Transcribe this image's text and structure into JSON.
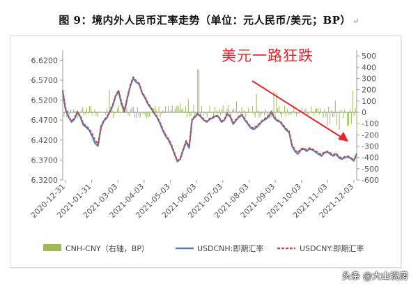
{
  "document": {
    "title": "图 9：境内外人民币汇率走势（单位：元人民币/美元；BP）",
    "return_mark": "↵"
  },
  "annotation": {
    "text": "美元一路狂跌",
    "color": "#e8242c"
  },
  "watermark": "头条 @大山说房",
  "chart_data": {
    "type": "line",
    "title": "",
    "x_tick_labels": [
      "2020-12-31",
      "2021-01-31",
      "2021-03-03",
      "2021-04-03",
      "2021-05-03",
      "2021-06-03",
      "2021-07-03",
      "2021-08-03",
      "2021-09-03",
      "2021-10-03",
      "2021-11-03",
      "2021-12-03"
    ],
    "y_left": {
      "min": 6.32,
      "max": 6.645,
      "ticks": [
        "6.3200",
        "6.3700",
        "6.4200",
        "6.4700",
        "6.5200",
        "6.5700",
        "6.6200"
      ]
    },
    "y_right": {
      "min": -600,
      "max": 550,
      "ticks": [
        "500",
        "400",
        "300",
        "200",
        "100",
        "0",
        "-100",
        "-200",
        "-300",
        "-400",
        "-500",
        "-600"
      ]
    },
    "grid": false,
    "legend_position": "bottom",
    "series": [
      {
        "name": "CNH-CNY（右轴，BP）",
        "kind": "bar",
        "axis": "right",
        "color": "#9bbb59"
      },
      {
        "name": "USDCNH:即期汇率",
        "kind": "line",
        "axis": "left",
        "color": "#4f81bd",
        "x": [
          0,
          0.01,
          0.02,
          0.03,
          0.04,
          0.05,
          0.06,
          0.07,
          0.08,
          0.09,
          0.1,
          0.11,
          0.12,
          0.13,
          0.14,
          0.15,
          0.16,
          0.17,
          0.18,
          0.19,
          0.2,
          0.21,
          0.22,
          0.23,
          0.24,
          0.25,
          0.26,
          0.27,
          0.28,
          0.29,
          0.3,
          0.31,
          0.32,
          0.33,
          0.34,
          0.35,
          0.36,
          0.37,
          0.38,
          0.39,
          0.4,
          0.41,
          0.42,
          0.43,
          0.44,
          0.45,
          0.46,
          0.47,
          0.48,
          0.49,
          0.5,
          0.51,
          0.52,
          0.53,
          0.54,
          0.55,
          0.56,
          0.57,
          0.58,
          0.59,
          0.6,
          0.61,
          0.62,
          0.63,
          0.64,
          0.65,
          0.66,
          0.67,
          0.68,
          0.69,
          0.7,
          0.71,
          0.72,
          0.73,
          0.74,
          0.75,
          0.76,
          0.77,
          0.78,
          0.79,
          0.8,
          0.81,
          0.82,
          0.83,
          0.84,
          0.85,
          0.86,
          0.87,
          0.88,
          0.89,
          0.9,
          0.91,
          0.92,
          0.93,
          0.94,
          0.95,
          0.96,
          0.97,
          0.98,
          0.99,
          1.0
        ],
        "values": [
          6.54,
          6.495,
          6.478,
          6.465,
          6.472,
          6.49,
          6.478,
          6.458,
          6.452,
          6.445,
          6.43,
          6.412,
          6.405,
          6.45,
          6.468,
          6.475,
          6.49,
          6.505,
          6.53,
          6.542,
          6.51,
          6.49,
          6.525,
          6.555,
          6.575,
          6.565,
          6.56,
          6.538,
          6.525,
          6.51,
          6.5,
          6.488,
          6.478,
          6.463,
          6.445,
          6.43,
          6.42,
          6.405,
          6.385,
          6.366,
          6.372,
          6.395,
          6.415,
          6.4,
          6.47,
          6.478,
          6.485,
          6.478,
          6.47,
          6.465,
          6.472,
          6.475,
          6.48,
          6.478,
          6.465,
          6.47,
          6.485,
          6.478,
          6.46,
          6.47,
          6.478,
          6.482,
          6.47,
          6.46,
          6.45,
          6.447,
          6.452,
          6.46,
          6.468,
          6.472,
          6.478,
          6.49,
          6.475,
          6.468,
          6.465,
          6.455,
          6.445,
          6.44,
          6.405,
          6.392,
          6.385,
          6.395,
          6.398,
          6.392,
          6.398,
          6.395,
          6.39,
          6.385,
          6.38,
          6.388,
          6.39,
          6.385,
          6.38,
          6.385,
          6.375,
          6.372,
          6.376,
          6.378,
          6.374,
          6.368,
          6.386
        ]
      },
      {
        "name": "USDCNY:即期汇率",
        "kind": "line",
        "axis": "left",
        "color": "#c0504d",
        "dashed": true,
        "x": [
          0,
          0.01,
          0.02,
          0.03,
          0.04,
          0.05,
          0.06,
          0.07,
          0.08,
          0.09,
          0.1,
          0.11,
          0.12,
          0.13,
          0.14,
          0.15,
          0.16,
          0.17,
          0.18,
          0.19,
          0.2,
          0.21,
          0.22,
          0.23,
          0.24,
          0.25,
          0.26,
          0.27,
          0.28,
          0.29,
          0.3,
          0.31,
          0.32,
          0.33,
          0.34,
          0.35,
          0.36,
          0.37,
          0.38,
          0.39,
          0.4,
          0.41,
          0.42,
          0.43,
          0.44,
          0.45,
          0.46,
          0.47,
          0.48,
          0.49,
          0.5,
          0.51,
          0.52,
          0.53,
          0.54,
          0.55,
          0.56,
          0.57,
          0.58,
          0.59,
          0.6,
          0.61,
          0.62,
          0.63,
          0.64,
          0.65,
          0.66,
          0.67,
          0.68,
          0.69,
          0.7,
          0.71,
          0.72,
          0.73,
          0.74,
          0.75,
          0.76,
          0.77,
          0.78,
          0.79,
          0.8,
          0.81,
          0.82,
          0.83,
          0.84,
          0.85,
          0.86,
          0.87,
          0.88,
          0.89,
          0.9,
          0.91,
          0.92,
          0.93,
          0.94,
          0.95,
          0.96,
          0.97,
          0.98,
          0.99,
          1.0
        ],
        "values": [
          6.545,
          6.5,
          6.48,
          6.467,
          6.475,
          6.492,
          6.48,
          6.462,
          6.455,
          6.448,
          6.436,
          6.42,
          6.41,
          6.455,
          6.47,
          6.478,
          6.492,
          6.508,
          6.532,
          6.545,
          6.515,
          6.494,
          6.528,
          6.558,
          6.578,
          6.568,
          6.562,
          6.54,
          6.528,
          6.512,
          6.502,
          6.49,
          6.48,
          6.466,
          6.448,
          6.433,
          6.423,
          6.408,
          6.388,
          6.368,
          6.375,
          6.398,
          6.418,
          6.404,
          6.473,
          6.48,
          6.487,
          6.48,
          6.472,
          6.467,
          6.474,
          6.477,
          6.482,
          6.48,
          6.467,
          6.472,
          6.487,
          6.48,
          6.463,
          6.472,
          6.48,
          6.484,
          6.473,
          6.462,
          6.453,
          6.45,
          6.455,
          6.462,
          6.47,
          6.475,
          6.48,
          6.492,
          6.478,
          6.47,
          6.467,
          6.458,
          6.448,
          6.443,
          6.408,
          6.395,
          6.388,
          6.398,
          6.4,
          6.395,
          6.4,
          6.397,
          6.393,
          6.388,
          6.383,
          6.39,
          6.392,
          6.388,
          6.383,
          6.387,
          6.378,
          6.375,
          6.378,
          6.38,
          6.376,
          6.37,
          6.38
        ]
      }
    ]
  }
}
